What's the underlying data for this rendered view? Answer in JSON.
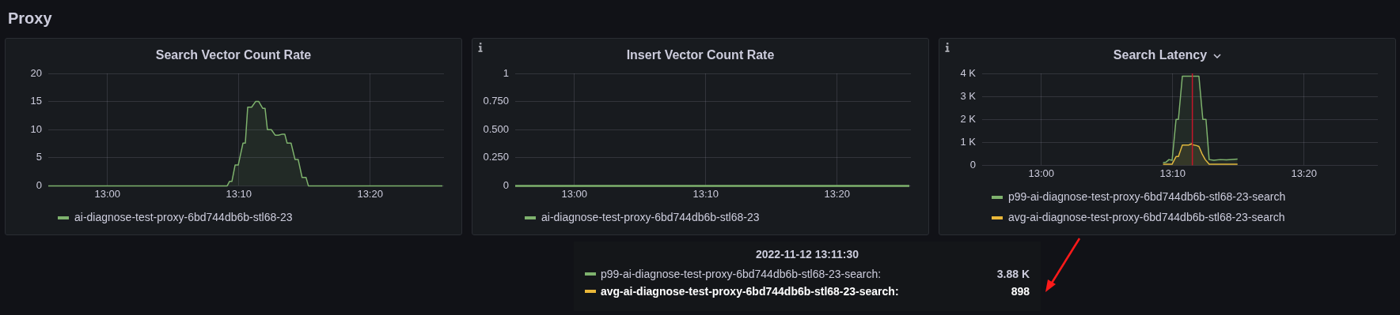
{
  "chart_data": [
    {
      "type": "other",
      "title": "Proxy"
    },
    {
      "type": "area",
      "title": "Search Vector Count Rate",
      "xlim": [
        12.925,
        13.427
      ],
      "xticks": [
        {
          "value": 13,
          "label": "13:00"
        },
        {
          "value": 13.1667,
          "label": "13:10"
        },
        {
          "value": 13.3333,
          "label": "13:20"
        }
      ],
      "ylim": [
        0,
        20
      ],
      "yticks": [
        0,
        5,
        10,
        15,
        20
      ],
      "grid": true,
      "legend": "bottom",
      "marker": "none",
      "series": [
        {
          "name": "ai-diagnose-test-proxy-6bd744db6b-stl68-23",
          "color": "#7eb26d",
          "x": [
            12.925,
            13.152,
            13.155,
            13.158,
            13.162,
            13.166,
            13.172,
            13.175,
            13.178,
            13.183,
            13.188,
            13.192,
            13.197,
            13.2,
            13.203,
            13.208,
            13.213,
            13.217,
            13.222,
            13.225,
            13.228,
            13.233,
            13.238,
            13.242,
            13.247,
            13.252,
            13.255,
            13.425
          ],
          "values": [
            0,
            0,
            0.8,
            0.8,
            3.7,
            3.7,
            7.6,
            7.6,
            14,
            14,
            15,
            15,
            13.8,
            13.8,
            10,
            10,
            9,
            9,
            9.2,
            9.2,
            7.6,
            7.6,
            4.7,
            4.7,
            1.5,
            1.5,
            0,
            0
          ]
        }
      ]
    },
    {
      "type": "area",
      "title": "Insert Vector Count Rate",
      "xlim": [
        12.925,
        13.427
      ],
      "xticks": [
        {
          "value": 13,
          "label": "13:00"
        },
        {
          "value": 13.1667,
          "label": "13:10"
        },
        {
          "value": 13.3333,
          "label": "13:20"
        }
      ],
      "ylim": [
        0,
        1
      ],
      "yticks": [
        0,
        {
          "value": 0.25,
          "label": "0.250"
        },
        {
          "value": 0.5,
          "label": "0.500"
        },
        {
          "value": 0.75,
          "label": "0.750"
        },
        1
      ],
      "grid": true,
      "legend": "bottom",
      "marker": "none",
      "series": [
        {
          "name": "ai-diagnose-test-proxy-6bd744db6b-stl68-23",
          "type": "line",
          "color": "#7eb26d",
          "x": [
            12.925,
            13.425
          ],
          "values": [
            0,
            0
          ]
        }
      ]
    },
    {
      "type": "area",
      "title": "Search Latency",
      "xlim": [
        12.925,
        13.427
      ],
      "xticks": [
        {
          "value": 13,
          "label": "13:00"
        },
        {
          "value": 13.1667,
          "label": "13:10"
        },
        {
          "value": 13.3333,
          "label": "13:20"
        }
      ],
      "ylim": [
        0,
        4000
      ],
      "yticks": [
        0,
        {
          "value": 1000,
          "label": "1 K"
        },
        {
          "value": 2000,
          "label": "2 K"
        },
        {
          "value": 3000,
          "label": "3 K"
        },
        {
          "value": 4000,
          "label": "4 K"
        }
      ],
      "grid": true,
      "legend": "bottom",
      "marker": "none",
      "ref_lines": [
        {
          "axis": "x",
          "value": 13.1917,
          "color": "#c4162a"
        }
      ],
      "annotations": [
        "2022-11-12 13:11:30",
        "p99-ai-diagnose-test-proxy-6bd744db6b-stl68-23-search:",
        "3.88 K",
        "avg-ai-diagnose-test-proxy-6bd744db6b-stl68-23-search:",
        "898"
      ],
      "series": [
        {
          "name": "p99-ai-diagnose-test-proxy-6bd744db6b-stl68-23-search",
          "color": "#7eb26d",
          "x": [
            13.1545,
            13.158,
            13.162,
            13.166,
            13.171,
            13.174,
            13.179,
            13.2,
            13.205,
            13.209,
            13.213,
            13.219,
            13.227,
            13.235,
            13.249
          ],
          "values": [
            120,
            130,
            250,
            220,
            2000,
            2000,
            3880,
            3880,
            2000,
            2000,
            250,
            220,
            250,
            240,
            270
          ]
        },
        {
          "name": "avg-ai-diagnose-test-proxy-6bd744db6b-stl68-23-search",
          "color": "#eab839",
          "x": [
            13.1545,
            13.166,
            13.171,
            13.174,
            13.179,
            13.187,
            13.191,
            13.1917,
            13.197,
            13.2,
            13.204,
            13.208,
            13.213,
            13.249
          ],
          "values": [
            50,
            50,
            380,
            380,
            880,
            880,
            940,
            900,
            860,
            820,
            500,
            250,
            50,
            50
          ]
        }
      ]
    }
  ]
}
